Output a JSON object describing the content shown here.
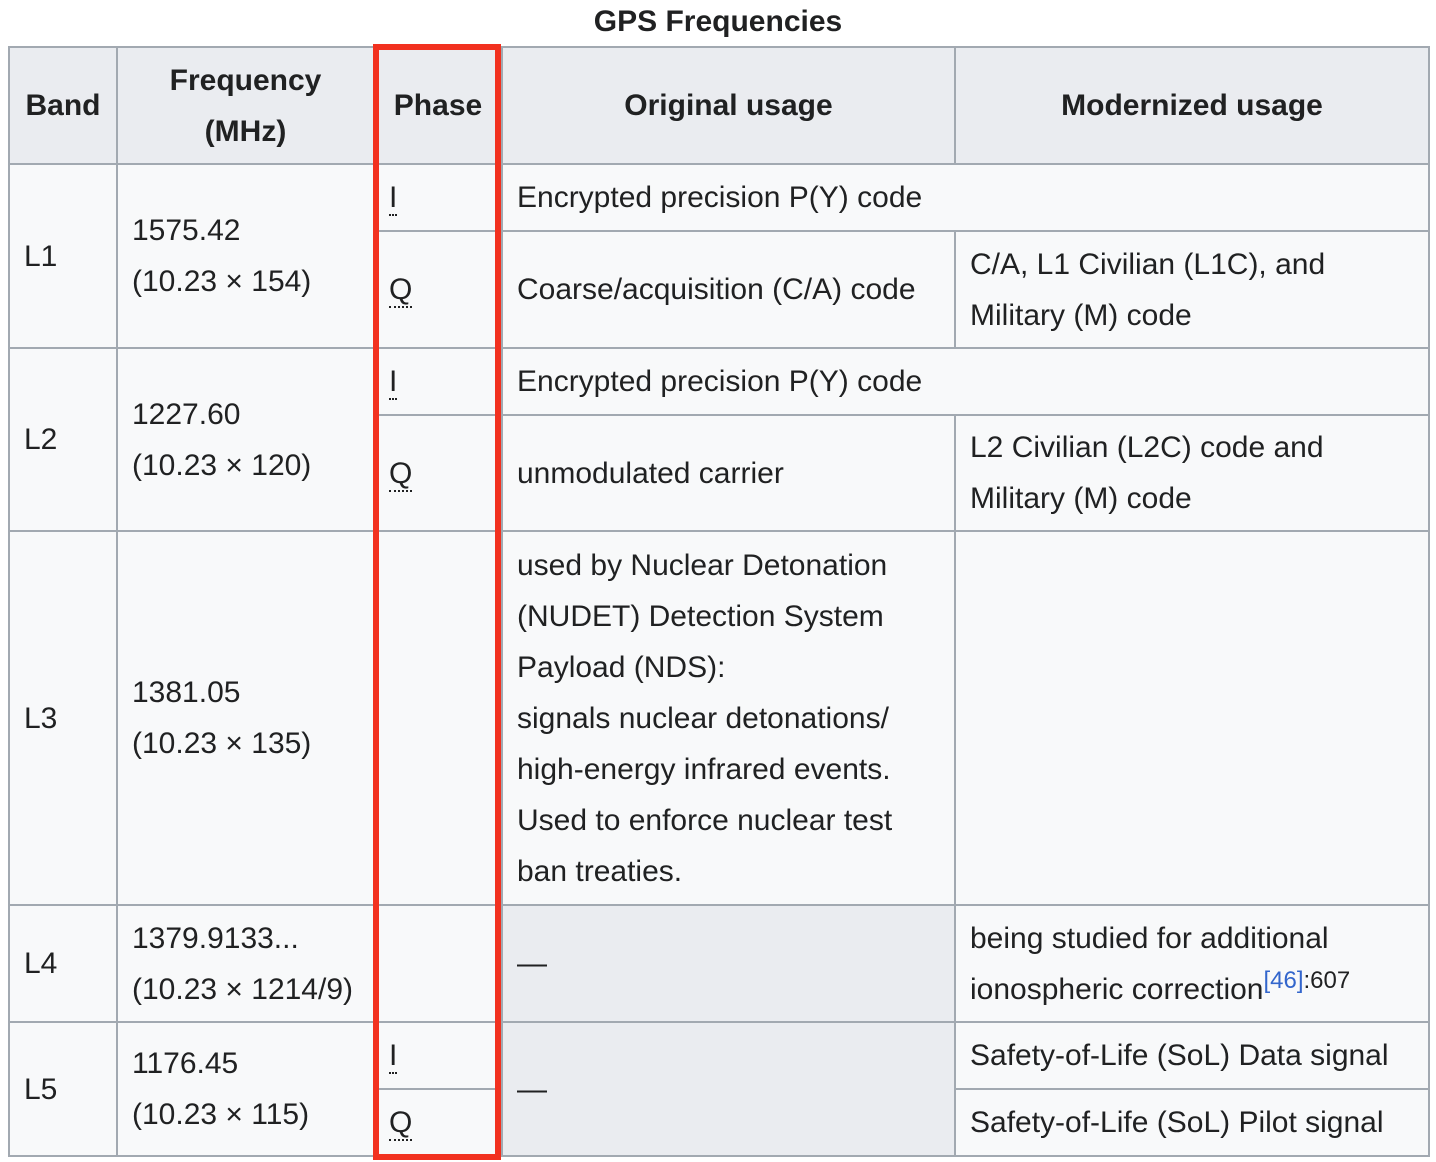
{
  "caption": "GPS Frequencies",
  "headers": {
    "band": "Band",
    "frequency": "Frequency (MHz)",
    "phase": "Phase",
    "original": "Original usage",
    "modernized": "Modernized usage"
  },
  "rows": {
    "l1": {
      "band": "L1",
      "freq": "1575.42",
      "mult": "(10.23 × 154)",
      "phase_i": "I",
      "phase_q": "Q",
      "i_usage": "Encrypted precision P(Y) code",
      "q_original": "Coarse/acquisition (C/A) code",
      "q_modern_1": "C/A, L1 Civilian (L1C), and",
      "q_modern_2": "Military (M) code"
    },
    "l2": {
      "band": "L2",
      "freq": "1227.60",
      "mult": "(10.23 × 120)",
      "phase_i": "I",
      "phase_q": "Q",
      "i_usage": "Encrypted precision P(Y) code",
      "q_original": "unmodulated carrier",
      "q_modern_1": "L2 Civilian (L2C) code and",
      "q_modern_2": "Military (M) code"
    },
    "l3": {
      "band": "L3",
      "freq": "1381.05",
      "mult": "(10.23 × 135)",
      "original_1": "used by Nuclear Detonation",
      "original_2": "(NUDET) Detection System",
      "original_3": "Payload (NDS):",
      "original_4": "signals nuclear detonations/",
      "original_5": "high-energy infrared events.",
      "original_6": "Used to enforce nuclear test",
      "original_7": "ban treaties."
    },
    "l4": {
      "band": "L4",
      "freq": "1379.9133...",
      "mult": "(10.23 × 1214/9)",
      "original": "—",
      "modern_1": "being studied for additional",
      "modern_2": "ionospheric correction",
      "ref": "[46]",
      "page": ":607"
    },
    "l5": {
      "band": "L5",
      "freq": "1176.45",
      "mult": "(10.23 × 115)",
      "phase_i": "I",
      "phase_q": "Q",
      "original": "—",
      "i_modern": "Safety-of-Life (SoL) Data signal",
      "q_modern": "Safety-of-Life (SoL) Pilot signal"
    }
  },
  "highlight_color": "#f2311f"
}
